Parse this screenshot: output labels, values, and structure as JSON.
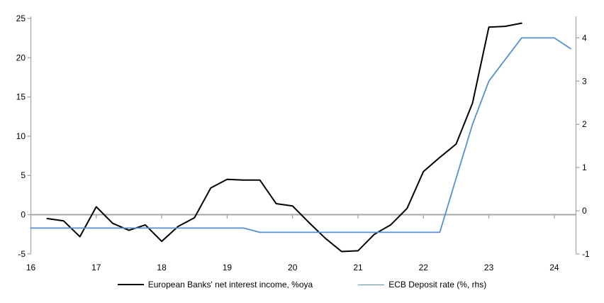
{
  "chart_data": {
    "type": "line",
    "title": "",
    "legend_position": "bottom",
    "grid": "none",
    "zero_line": true,
    "x_axis": {
      "tick_labels": [
        "16",
        "17",
        "18",
        "19",
        "20",
        "21",
        "22",
        "23",
        "24"
      ],
      "tick_values": [
        16,
        17,
        18,
        19,
        20,
        21,
        22,
        23,
        24
      ],
      "range": [
        16,
        24.33
      ]
    },
    "left_axis": {
      "tick_values": [
        -5,
        0,
        5,
        10,
        15,
        20,
        25
      ],
      "range": [
        -5,
        25.3
      ]
    },
    "right_axis": {
      "tick_values": [
        -1,
        0,
        1,
        2,
        3,
        4
      ],
      "range": [
        -1,
        4.5
      ]
    },
    "series": [
      {
        "name": "European Banks' net interest income, %oya",
        "axis": "left",
        "color": "#000000",
        "width": 2,
        "x": [
          16.25,
          16.5,
          16.75,
          17.0,
          17.25,
          17.5,
          17.75,
          18.0,
          18.25,
          18.5,
          18.75,
          19.0,
          19.25,
          19.5,
          19.75,
          20.0,
          20.25,
          20.5,
          20.75,
          21.0,
          21.25,
          21.5,
          21.75,
          22.0,
          22.25,
          22.5,
          22.75,
          23.0,
          23.25,
          23.5
        ],
        "values": [
          -0.5,
          -0.8,
          -2.8,
          1.0,
          -1.1,
          -2.0,
          -1.3,
          -3.4,
          -1.5,
          -0.4,
          3.4,
          4.5,
          4.4,
          4.4,
          1.4,
          1.1,
          -1.0,
          -3.0,
          -4.7,
          -4.6,
          -2.5,
          -1.3,
          0.8,
          5.5,
          7.3,
          9.0,
          14.2,
          23.9,
          24.0,
          24.4
        ]
      },
      {
        "name": "ECB Deposit rate (%, rhs)",
        "axis": "right",
        "color": "#5590cf",
        "width": 1.8,
        "x": [
          16.0,
          16.25,
          16.5,
          16.75,
          17.0,
          17.25,
          17.5,
          17.75,
          18.0,
          18.25,
          18.5,
          18.75,
          19.0,
          19.25,
          19.5,
          19.75,
          20.0,
          20.25,
          20.5,
          20.75,
          21.0,
          21.25,
          21.5,
          21.75,
          22.0,
          22.25,
          22.5,
          22.75,
          23.0,
          23.25,
          23.5,
          23.75,
          24.0,
          24.25
        ],
        "values": [
          -0.4,
          -0.4,
          -0.4,
          -0.4,
          -0.4,
          -0.4,
          -0.4,
          -0.4,
          -0.4,
          -0.4,
          -0.4,
          -0.4,
          -0.4,
          -0.4,
          -0.5,
          -0.5,
          -0.5,
          -0.5,
          -0.5,
          -0.5,
          -0.5,
          -0.5,
          -0.5,
          -0.5,
          -0.5,
          -0.5,
          0.75,
          2.0,
          3.0,
          3.5,
          4.0,
          4.0,
          4.0,
          3.75
        ]
      }
    ]
  },
  "colors": {
    "axis": "#a6a6a6",
    "zero_line": "#a6a6a6",
    "text": "#000000",
    "background": "#ffffff"
  }
}
